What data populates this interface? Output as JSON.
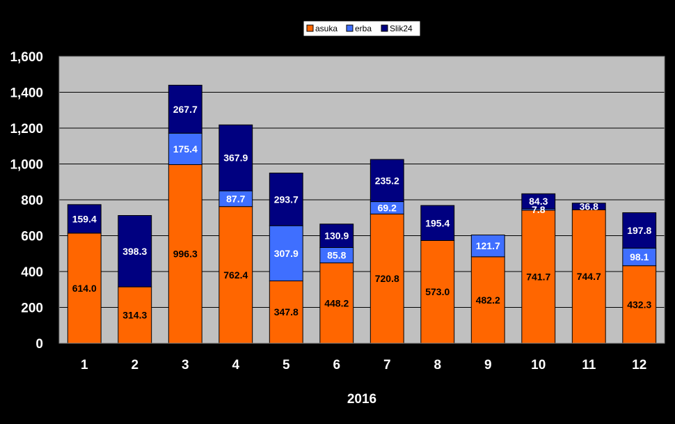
{
  "chart_data": {
    "type": "bar",
    "stacked": true,
    "categories": [
      "1",
      "2",
      "3",
      "4",
      "5",
      "6",
      "7",
      "8",
      "9",
      "10",
      "11",
      "12"
    ],
    "series": [
      {
        "name": "asuka",
        "color": "#ff6600",
        "label_color": "#000000",
        "values": [
          614.0,
          314.3,
          996.3,
          762.4,
          347.8,
          448.2,
          720.8,
          573.0,
          482.2,
          741.7,
          744.7,
          432.3
        ]
      },
      {
        "name": "erba",
        "color": "#3f6fff",
        "label_color": "#ffffff",
        "values": [
          0,
          0,
          175.4,
          87.7,
          307.9,
          85.8,
          69.2,
          0,
          121.7,
          7.8,
          0,
          98.1
        ]
      },
      {
        "name": "Slik24",
        "color": "#000080",
        "label_color": "#ffffff",
        "values": [
          159.4,
          398.3,
          267.7,
          367.9,
          293.7,
          130.9,
          235.2,
          195.4,
          0,
          84.3,
          36.8,
          197.8
        ]
      }
    ],
    "title": "",
    "xlabel": "2016",
    "ylabel": "",
    "ylim": [
      0,
      1600
    ],
    "yticks": [
      0,
      200,
      400,
      600,
      800,
      1000,
      1200,
      1400,
      1600
    ],
    "ytick_labels": [
      "0",
      "200",
      "400",
      "600",
      "800",
      "1,000",
      "1,200",
      "1,400",
      "1,600"
    ],
    "grid": true,
    "legend": "top-center",
    "background_color": "#000000",
    "plot_background_color": "#c0c0c0"
  }
}
